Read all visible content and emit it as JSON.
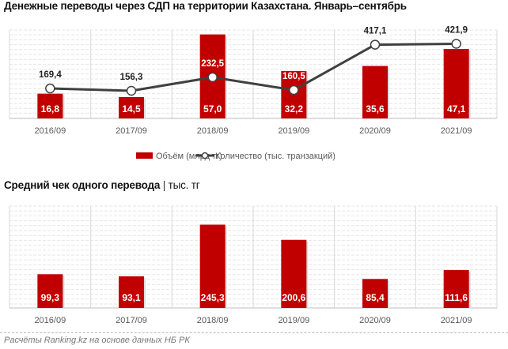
{
  "chart_data": [
    {
      "type": "bar+line",
      "title": "Денежные переводы через СДП на территории Казахстана. Январь–сентябрь",
      "categories": [
        "2016/09",
        "2017/09",
        "2018/09",
        "2019/09",
        "2020/09",
        "2021/09"
      ],
      "series": [
        {
          "name": "Объём (млрд тг)",
          "type": "bar",
          "values": [
            16.8,
            14.5,
            57.0,
            32.2,
            35.6,
            47.1
          ],
          "labels": [
            "16,8",
            "14,5",
            "57,0",
            "32,2",
            "35,6",
            "47,1"
          ],
          "color": "#c00000"
        },
        {
          "name": "Количество (тыс. транзакций)",
          "type": "line",
          "values": [
            169.4,
            156.3,
            232.5,
            160.5,
            417.1,
            421.9
          ],
          "labels": [
            "169,4",
            "156,3",
            "232,5",
            "160,5",
            "417,1",
            "421,9"
          ],
          "color": "#404040"
        }
      ],
      "ylim_bar": [
        0,
        60
      ],
      "ylim_line": [
        0,
        500
      ],
      "legend": "bottom",
      "grid": true
    },
    {
      "type": "bar",
      "title": "Средний чек одного перевода",
      "subtitle": "тыс. тг",
      "categories": [
        "2016/09",
        "2017/09",
        "2018/09",
        "2019/09",
        "2020/09",
        "2021/09"
      ],
      "values": [
        99.3,
        93.1,
        245.3,
        200.6,
        85.4,
        111.6
      ],
      "labels": [
        "99,3",
        "93,1",
        "245,3",
        "200,6",
        "85,4",
        "111,6"
      ],
      "color": "#c00000",
      "ylim": [
        0,
        300
      ],
      "grid": true
    }
  ],
  "footer": "Расчёты Ranking.kz на основе данных НБ РК"
}
